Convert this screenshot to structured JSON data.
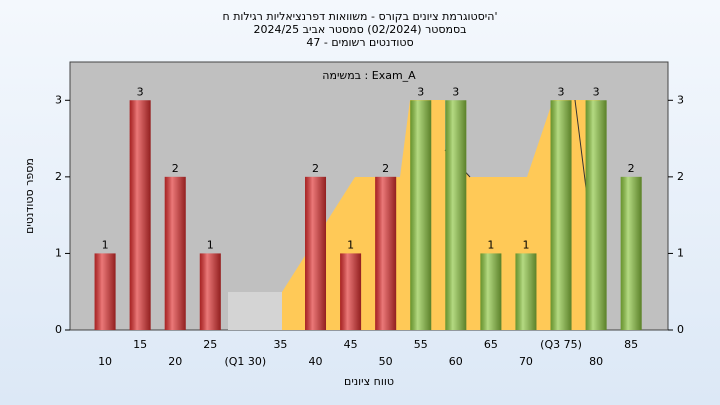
{
  "chart_data": {
    "type": "bar",
    "title_lines": [
      "היסטוגרמת ציונים בקורס - משוואות דפרנציאליות רגילות ח'",
      "בסמסטר  (02/2024)  סמסטר אביב 2024/25",
      "סטודנטים רשומים - 47"
    ],
    "annotation": "במשימה : Exam_A",
    "x_label": "טווח ציונים",
    "y_label": "מספר סטודנטים",
    "categories": [
      "10",
      "15",
      "20",
      "25",
      "(Q1 30)",
      "35",
      "40",
      "45",
      "50",
      "55",
      "60",
      "65",
      "70",
      "(Q3 75)",
      "80",
      "85"
    ],
    "values": [
      1,
      3,
      2,
      1,
      0,
      0,
      2,
      1,
      2,
      3,
      3,
      1,
      1,
      3,
      3,
      2
    ],
    "colors": [
      "#e03030",
      "#e03030",
      "#e03030",
      "#e03030",
      "#e03030",
      "#e03030",
      "#e03030",
      "#e03030",
      "#e03030",
      "#8cc63f",
      "#8cc63f",
      "#8cc63f",
      "#8cc63f",
      "#8cc63f",
      "#8cc63f",
      "#8cc63f"
    ],
    "ylim": [
      0,
      3.5
    ],
    "yticks": [
      0,
      1,
      2,
      3
    ]
  }
}
